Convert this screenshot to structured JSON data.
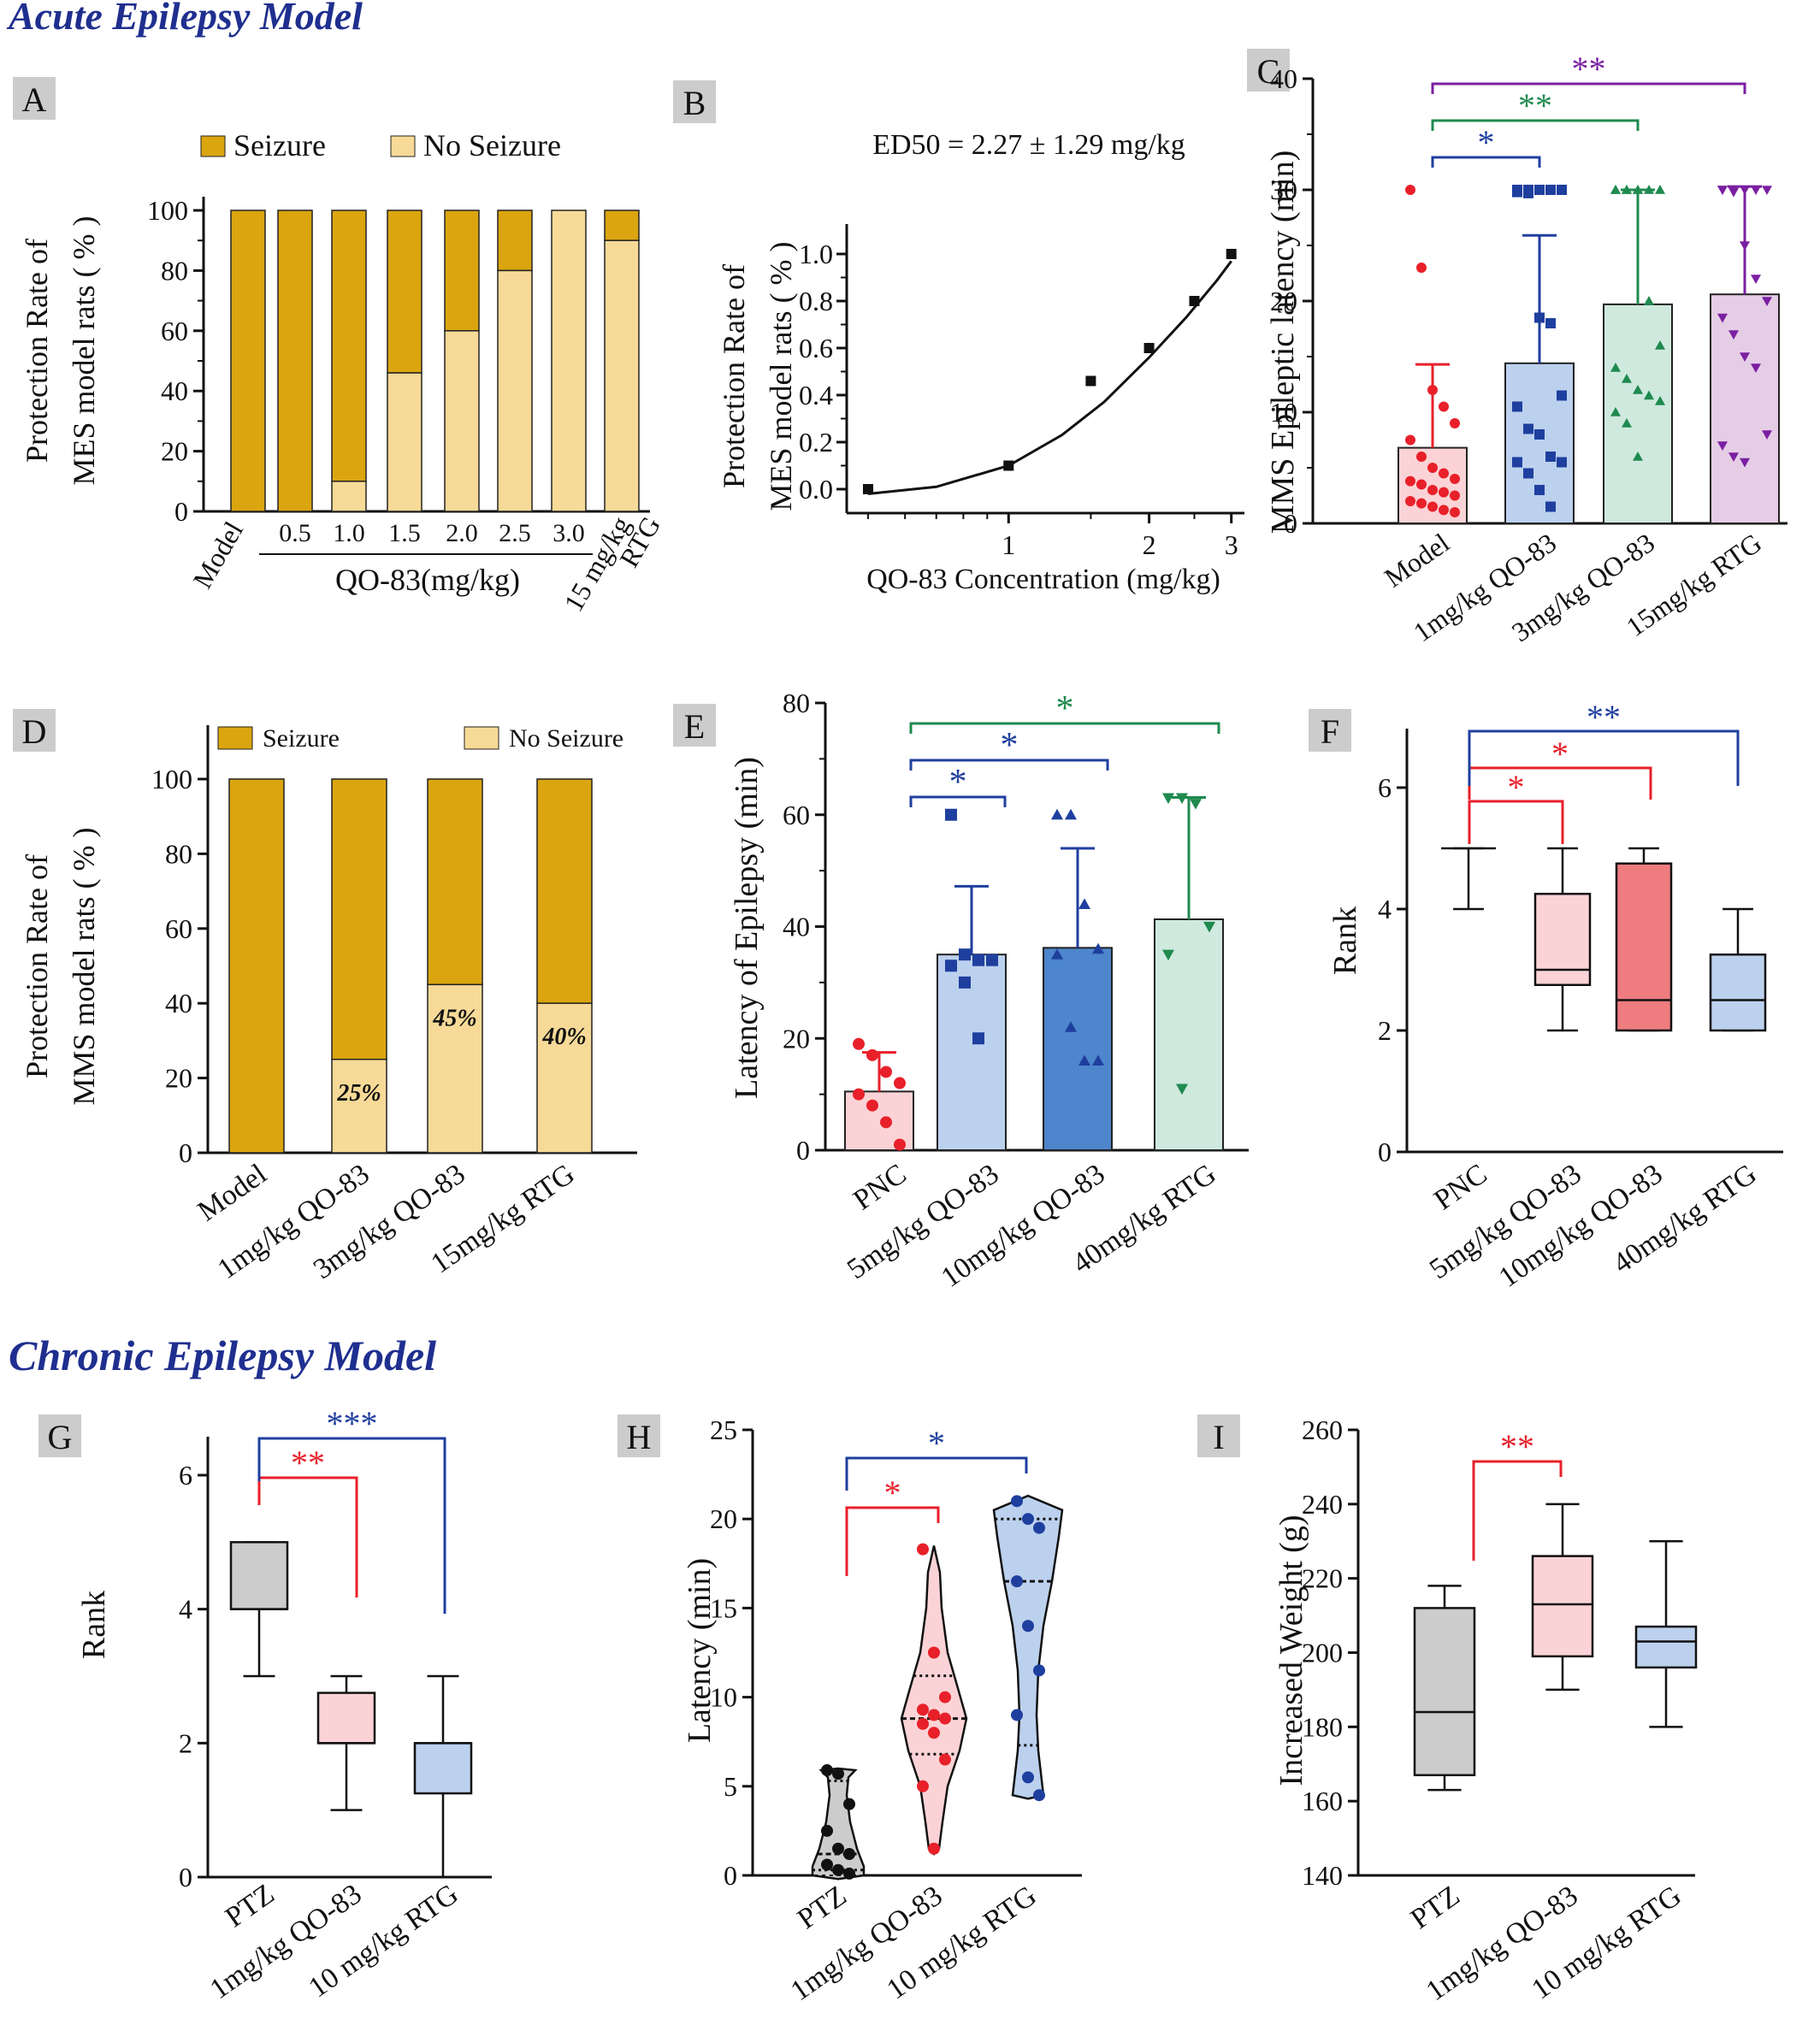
{
  "sections": {
    "acute": "Acute Epilepsy Model",
    "chronic": "Chronic Epilepsy Model"
  },
  "colors": {
    "seizure": "#dba510",
    "no_seizure": "#f7da97",
    "red": "#e8202a",
    "blue": "#1f3f9f",
    "green": "#1f8a4f",
    "purple": "#7b1fa2",
    "panel_label_bg": "#cccccc"
  },
  "chart_data": [
    {
      "panel": "A",
      "type": "bar",
      "stacked": true,
      "ylabel": "Protection Rate of MES model rats ( % )",
      "ylim": [
        0,
        100
      ],
      "yticks": [
        0,
        20,
        40,
        60,
        80,
        100
      ],
      "categories": [
        "Model",
        "0.5",
        "1.0",
        "1.5",
        "2.0",
        "2.5",
        "3.0",
        "15 mg/kg RTG"
      ],
      "group_label": "QO-83(mg/kg)",
      "legend": [
        "Seizure",
        "No Seizure"
      ],
      "series": [
        {
          "name": "No Seizure",
          "values": [
            0,
            0,
            10,
            46,
            60,
            80,
            100,
            90
          ]
        },
        {
          "name": "Seizure",
          "values": [
            100,
            100,
            90,
            54,
            40,
            20,
            0,
            10
          ]
        }
      ]
    },
    {
      "panel": "B",
      "type": "scatter",
      "annotation": "ED50 = 2.27 ± 1.29 mg/kg",
      "xlabel": "QO-83 Concentration (mg/kg)",
      "ylabel": "Protection Rate of MES model rats ( % )",
      "xscale": "log",
      "xlim": [
        0.45,
        3.2
      ],
      "xticks": [
        1,
        2,
        3
      ],
      "ylim": [
        -0.05,
        1.1
      ],
      "yticks": [
        0.0,
        0.2,
        0.4,
        0.6,
        0.8,
        1.0
      ],
      "points": [
        [
          0.5,
          0.0
        ],
        [
          1.0,
          0.1
        ],
        [
          1.5,
          0.46
        ],
        [
          2.0,
          0.6
        ],
        [
          2.5,
          0.8
        ],
        [
          3.0,
          1.0
        ]
      ],
      "fit": [
        [
          0.5,
          -0.02
        ],
        [
          0.7,
          0.01
        ],
        [
          1.0,
          0.1
        ],
        [
          1.3,
          0.23
        ],
        [
          1.6,
          0.37
        ],
        [
          2.0,
          0.56
        ],
        [
          2.4,
          0.73
        ],
        [
          2.8,
          0.89
        ],
        [
          3.0,
          0.97
        ]
      ]
    },
    {
      "panel": "C",
      "type": "bar",
      "ylabel": "MMS Epileptic latency (min)",
      "ylim": [
        0,
        40
      ],
      "yticks": [
        0,
        10,
        20,
        30,
        40
      ],
      "categories": [
        "Model",
        "1mg/kg QO-83",
        "3mg/kg QO-83",
        "15mg/kg RTG"
      ],
      "values": [
        6.8,
        14.4,
        19.7,
        20.6
      ],
      "sd": [
        7.5,
        11.5,
        10.3,
        9.7
      ],
      "points": [
        [
          30,
          23,
          12,
          10.5,
          9,
          7.5,
          6,
          5,
          4.5,
          4,
          3.8,
          3.5,
          3,
          2.8,
          2.5,
          2,
          1.8,
          1.5,
          1.2,
          1
        ],
        [
          30,
          30,
          30,
          30,
          30,
          29.8,
          29.7,
          18.5,
          18,
          11.5,
          10.5,
          8.5,
          8,
          6,
          5.5,
          5.5,
          4.5,
          3,
          1.5
        ],
        [
          30,
          30,
          30,
          30,
          30,
          30,
          30,
          30,
          20,
          16,
          14,
          13,
          12,
          11.5,
          11,
          10,
          9,
          6
        ],
        [
          30,
          30,
          30,
          30,
          30,
          30,
          29.8,
          25,
          22,
          20,
          18.5,
          17,
          15,
          14,
          8,
          7,
          6,
          5.5
        ]
      ],
      "significance": [
        {
          "from": 0,
          "to": 1,
          "label": "*",
          "color": "blue"
        },
        {
          "from": 0,
          "to": 2,
          "label": "**",
          "color": "green"
        },
        {
          "from": 0,
          "to": 3,
          "label": "**",
          "color": "purple"
        }
      ]
    },
    {
      "panel": "D",
      "type": "bar",
      "stacked": true,
      "ylabel": "Protection Rate of MMS model rats ( % )",
      "ylim": [
        0,
        110
      ],
      "yticks": [
        0,
        20,
        40,
        60,
        80,
        100
      ],
      "categories": [
        "Model",
        "1mg/kg QO-83",
        "3mg/kg QO-83",
        "15mg/kg RTG"
      ],
      "legend": [
        "Seizure",
        "No Seizure"
      ],
      "series": [
        {
          "name": "No Seizure",
          "values": [
            0,
            25,
            45,
            40
          ]
        },
        {
          "name": "Seizure",
          "values": [
            100,
            75,
            55,
            60
          ]
        }
      ],
      "data_labels": [
        "",
        "25%",
        "45%",
        "40%"
      ]
    },
    {
      "panel": "E",
      "type": "bar",
      "ylabel": "Latency of Epilepsy (min)",
      "ylim": [
        0,
        80
      ],
      "yticks": [
        0,
        20,
        40,
        60,
        80
      ],
      "categories": [
        "PNC",
        "5mg/kg QO-83",
        "10mg/kg QO-83",
        "40mg/kg RTG"
      ],
      "values": [
        10.5,
        35,
        36.2,
        41.3
      ],
      "sd": [
        7,
        12.2,
        17.8,
        21.8
      ],
      "points": [
        [
          19,
          17,
          14,
          12,
          10,
          8,
          5,
          1
        ],
        [
          60,
          35,
          34,
          34,
          33,
          30,
          20
        ],
        [
          60,
          60,
          44,
          36,
          35,
          22,
          16,
          16
        ],
        [
          63,
          63,
          62,
          40,
          35,
          11
        ]
      ],
      "significance": [
        {
          "from": 0,
          "to": 1,
          "label": "*",
          "color": "blue"
        },
        {
          "from": 0,
          "to": 2,
          "label": "*",
          "color": "blue"
        },
        {
          "from": 0,
          "to": 3,
          "label": "*",
          "color": "green"
        }
      ]
    },
    {
      "panel": "F",
      "type": "box",
      "ylabel": "Rank",
      "ylim": [
        0,
        6.5
      ],
      "yticks": [
        0,
        2,
        4,
        6
      ],
      "categories": [
        "PNC",
        "5mg/kg QO-83",
        "10mg/kg QO-83",
        "40mg/kg RTG"
      ],
      "boxes": [
        {
          "min": 4,
          "q1": 5,
          "median": 5,
          "q3": 5,
          "max": 5
        },
        {
          "min": 2,
          "q1": 2.75,
          "median": 3,
          "q3": 4.25,
          "max": 5
        },
        {
          "min": 2,
          "q1": 2,
          "median": 2.5,
          "q3": 4.75,
          "max": 5
        },
        {
          "min": 2,
          "q1": 2,
          "median": 2.5,
          "q3": 3.25,
          "max": 4
        }
      ],
      "significance": [
        {
          "from": 0,
          "to": 1,
          "label": "*",
          "color": "red"
        },
        {
          "from": 0,
          "to": 2,
          "label": "*",
          "color": "red"
        },
        {
          "from": 0,
          "to": 3,
          "label": "**",
          "color": "blue"
        }
      ]
    },
    {
      "panel": "G",
      "type": "box",
      "ylabel": "Rank",
      "ylim": [
        0,
        6.5
      ],
      "yticks": [
        0,
        2,
        4,
        6
      ],
      "categories": [
        "PTZ",
        "1mg/kg QO-83",
        "10 mg/kg RTG"
      ],
      "boxes": [
        {
          "min": 3,
          "q1": 4,
          "median": 4,
          "q3": 5,
          "max": 5
        },
        {
          "min": 1,
          "q1": 2,
          "median": 2,
          "q3": 2.75,
          "max": 3
        },
        {
          "min": 0,
          "q1": 1.25,
          "median": 2,
          "q3": 2,
          "max": 3
        }
      ],
      "significance": [
        {
          "from": 0,
          "to": 1,
          "label": "**",
          "color": "red"
        },
        {
          "from": 0,
          "to": 2,
          "label": "***",
          "color": "blue"
        }
      ]
    },
    {
      "panel": "H",
      "type": "violin",
      "ylabel": "Latency (min)",
      "ylim": [
        0,
        25
      ],
      "yticks": [
        0,
        5,
        10,
        15,
        20,
        25
      ],
      "categories": [
        "PTZ",
        "1mg/kg QO-83",
        "10 mg/kg RTG"
      ],
      "points": [
        [
          5.9,
          5.7,
          4,
          2.5,
          1.5,
          1.2,
          0.6,
          0.3,
          0.1
        ],
        [
          18.3,
          12.5,
          10,
          9.3,
          9,
          8.8,
          8.5,
          8,
          6.5,
          5,
          1.5
        ],
        [
          21,
          20,
          19.5,
          16.5,
          14,
          11.5,
          9,
          5.5,
          4.5
        ]
      ],
      "quartiles": [
        [
          0.3,
          1.2,
          5.3
        ],
        [
          6.8,
          8.8,
          11.2
        ],
        [
          7.3,
          16.5,
          20
        ]
      ],
      "significance": [
        {
          "from": 0,
          "to": 1,
          "label": "*",
          "color": "red"
        },
        {
          "from": 0,
          "to": 2,
          "label": "*",
          "color": "blue"
        }
      ]
    },
    {
      "panel": "I",
      "type": "box",
      "ylabel": "Increased Weight (g)",
      "ylim": [
        140,
        260
      ],
      "yticks": [
        140,
        160,
        180,
        200,
        220,
        240,
        260
      ],
      "categories": [
        "PTZ",
        "1mg/kg QO-83",
        "10 mg/kg RTG"
      ],
      "boxes": [
        {
          "min": 163,
          "q1": 167,
          "median": 184,
          "q3": 212,
          "max": 218
        },
        {
          "min": 190,
          "q1": 199,
          "median": 213,
          "q3": 226,
          "max": 240
        },
        {
          "min": 180,
          "q1": 196,
          "median": 203,
          "q3": 207,
          "max": 230
        }
      ],
      "significance": [
        {
          "from": 0,
          "to": 1,
          "label": "**",
          "color": "red"
        }
      ]
    }
  ]
}
